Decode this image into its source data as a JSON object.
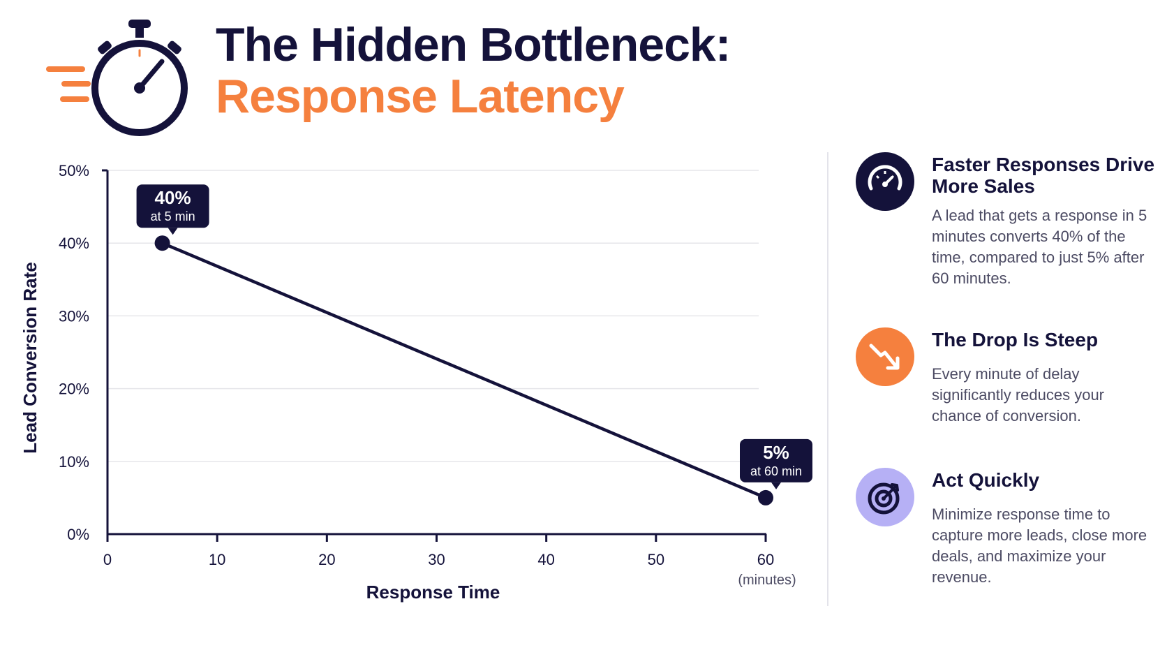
{
  "header": {
    "title_line1": "The Hidden Bottleneck:",
    "title_line2": "Response Latency",
    "title_line2_color": "#f5803e",
    "icon": "stopwatch-icon"
  },
  "colors": {
    "navy": "#14123a",
    "orange": "#f5803e",
    "lavender": "#b6b0f5",
    "gridline": "#e6e6ea"
  },
  "chart_data": {
    "type": "line",
    "title": "",
    "xlabel": "Response Time",
    "xunit": "(minutes)",
    "ylabel": "Lead Conversion Rate",
    "xlim": [
      0,
      60
    ],
    "ylim": [
      0,
      50
    ],
    "x_ticks": [
      "0",
      "10",
      "20",
      "30",
      "40",
      "50",
      "60"
    ],
    "y_ticks": [
      "0%",
      "10%",
      "20%",
      "30%",
      "40%",
      "50%"
    ],
    "grid": true,
    "series": [
      {
        "color": "#14123a",
        "points": [
          {
            "x": 5,
            "y": 40
          },
          {
            "x": 60,
            "y": 5
          }
        ]
      }
    ],
    "annotations": [
      {
        "value": "40%",
        "sub": "at 5 min"
      },
      {
        "value": "5%",
        "sub": "at 60 min"
      }
    ]
  },
  "panels": [
    {
      "icon": "speedometer-icon",
      "icon_color": "#14123a",
      "title": "Faster Responses Drive More Sales",
      "body": "A lead that gets a response in 5 minutes converts 40% of the time, compared to just 5% after 60 minutes."
    },
    {
      "icon": "trending-down-icon",
      "icon_color": "#f5803e",
      "title": "The Drop Is Steep",
      "body": "Every minute of delay significantly reduces your chance of conversion."
    },
    {
      "icon": "target-icon",
      "icon_color": "#b6b0f5",
      "title": "Act Quickly",
      "body": "Minimize response time to capture more leads, close more deals, and maximize your revenue."
    }
  ]
}
